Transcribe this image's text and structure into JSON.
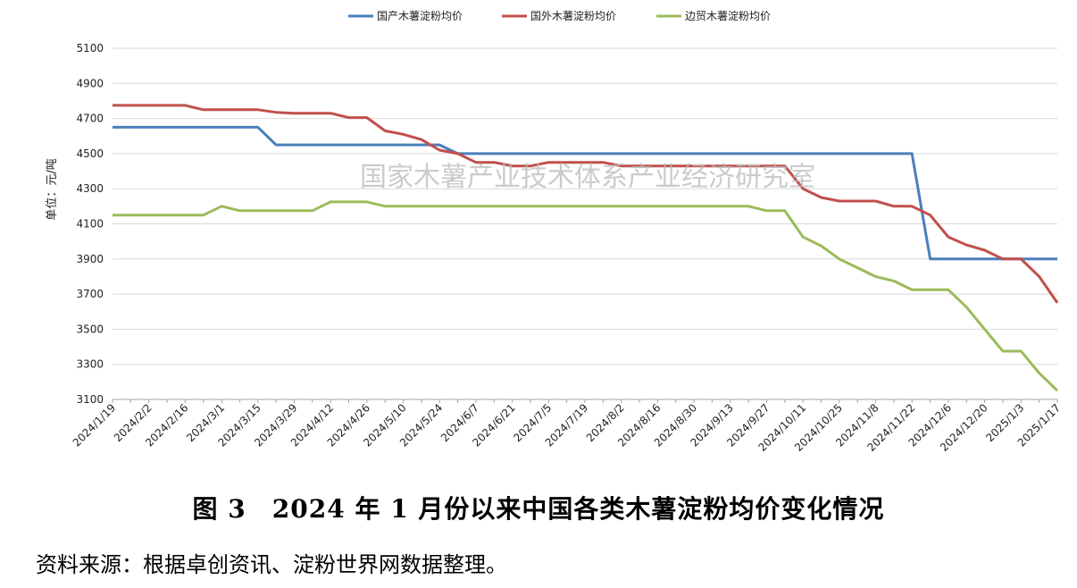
{
  "caption": "图 3　2024 年 1 月份以来中国各类木薯淀粉均价变化情况",
  "source": "资料来源：根据卓创资讯、淀粉世界网数据整理。",
  "watermark": "国家木薯产业技术体系产业经济研究室",
  "chart_data": {
    "type": "line",
    "title": "",
    "xlabel": "",
    "ylabel": "单位：元/吨",
    "ylim": [
      3100,
      5100
    ],
    "yticks": [
      3100,
      3300,
      3500,
      3700,
      3900,
      4100,
      4300,
      4500,
      4700,
      4900,
      5100
    ],
    "grid": "horizontal",
    "legend_position": "top-center",
    "x": [
      "2024/1/19",
      "2024/1/26",
      "2024/2/2",
      "2024/2/9",
      "2024/2/16",
      "2024/2/23",
      "2024/3/1",
      "2024/3/8",
      "2024/3/15",
      "2024/3/22",
      "2024/3/29",
      "2024/4/5",
      "2024/4/12",
      "2024/4/19",
      "2024/4/26",
      "2024/5/3",
      "2024/5/10",
      "2024/5/17",
      "2024/5/24",
      "2024/5/31",
      "2024/6/7",
      "2024/6/14",
      "2024/6/21",
      "2024/6/28",
      "2024/7/5",
      "2024/7/12",
      "2024/7/19",
      "2024/7/26",
      "2024/8/2",
      "2024/8/9",
      "2024/8/16",
      "2024/8/23",
      "2024/8/30",
      "2024/9/6",
      "2024/9/13",
      "2024/9/20",
      "2024/9/27",
      "2024/10/4",
      "2024/10/11",
      "2024/10/18",
      "2024/10/25",
      "2024/11/1",
      "2024/11/8",
      "2024/11/15",
      "2024/11/22",
      "2024/11/29",
      "2024/12/6",
      "2024/12/13",
      "2024/12/20",
      "2024/12/27",
      "2025/1/3",
      "2025/1/10",
      "2025/1/17"
    ],
    "xtick_labels": [
      "2024/1/19",
      "2024/2/2",
      "2024/2/16",
      "2024/3/1",
      "2024/3/15",
      "2024/3/29",
      "2024/4/12",
      "2024/4/26",
      "2024/5/10",
      "2024/5/24",
      "2024/6/7",
      "2024/6/21",
      "2024/7/5",
      "2024/7/19",
      "2024/8/2",
      "2024/8/16",
      "2024/8/30",
      "2024/9/13",
      "2024/9/27",
      "2024/10/11",
      "2024/10/25",
      "2024/11/8",
      "2024/11/22",
      "2024/12/6",
      "2024/12/20",
      "2025/1/3",
      "2025/1/17"
    ],
    "series": [
      {
        "name": "国产木薯淀粉均价",
        "color": "#4a7ebb",
        "values": [
          4650,
          4650,
          4650,
          4650,
          4650,
          4650,
          4650,
          4650,
          4650,
          4550,
          4550,
          4550,
          4550,
          4550,
          4550,
          4550,
          4550,
          4550,
          4550,
          4500,
          4500,
          4500,
          4500,
          4500,
          4500,
          4500,
          4500,
          4500,
          4500,
          4500,
          4500,
          4500,
          4500,
          4500,
          4500,
          4500,
          4500,
          4500,
          4500,
          4500,
          4500,
          4500,
          4500,
          4500,
          4500,
          3900,
          3900,
          3900,
          3900,
          3900,
          3900,
          3900,
          3900
        ]
      },
      {
        "name": "国外木薯淀粉均价",
        "color": "#c0504d",
        "values": [
          4775,
          4775,
          4775,
          4775,
          4775,
          4750,
          4750,
          4750,
          4750,
          4735,
          4730,
          4730,
          4730,
          4705,
          4705,
          4630,
          4610,
          4580,
          4520,
          4500,
          4450,
          4450,
          4430,
          4430,
          4450,
          4450,
          4450,
          4450,
          4430,
          4430,
          4430,
          4430,
          4430,
          4430,
          4430,
          4430,
          4430,
          4430,
          4300,
          4250,
          4230,
          4230,
          4230,
          4200,
          4200,
          4150,
          4025,
          3980,
          3950,
          3900,
          3900,
          3800,
          3650
        ]
      },
      {
        "name": "边贸木薯淀粉均价",
        "color": "#9bbb59",
        "values": [
          4150,
          4150,
          4150,
          4150,
          4150,
          4150,
          4200,
          4175,
          4175,
          4175,
          4175,
          4175,
          4225,
          4225,
          4225,
          4200,
          4200,
          4200,
          4200,
          4200,
          4200,
          4200,
          4200,
          4200,
          4200,
          4200,
          4200,
          4200,
          4200,
          4200,
          4200,
          4200,
          4200,
          4200,
          4200,
          4200,
          4175,
          4175,
          4025,
          3975,
          3900,
          3850,
          3800,
          3775,
          3725,
          3725,
          3725,
          3625,
          3500,
          3375,
          3375,
          3250,
          3150
        ]
      }
    ]
  }
}
